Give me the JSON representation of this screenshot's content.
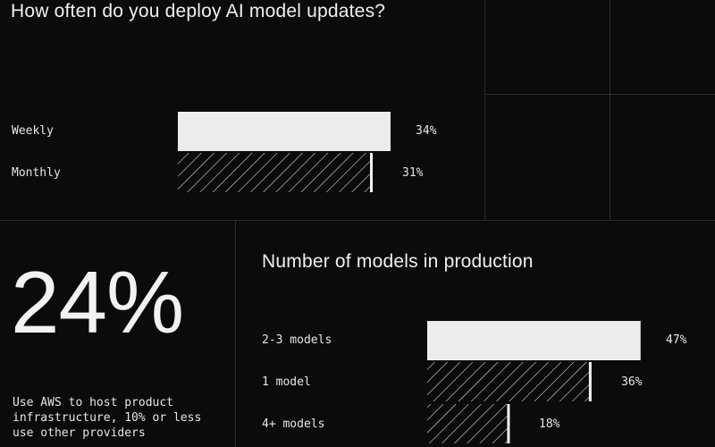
{
  "chart_data": [
    {
      "type": "bar",
      "orientation": "horizontal",
      "title": "How often do you deploy AI model updates?",
      "categories": [
        "Weekly",
        "Monthly"
      ],
      "values": [
        34,
        31
      ],
      "value_labels": [
        "34%",
        "31%"
      ],
      "styles": [
        "solid",
        "hatched"
      ]
    },
    {
      "type": "bar",
      "orientation": "horizontal",
      "title": "Number of models in production",
      "categories": [
        "2-3 models",
        "1 model",
        "4+ models"
      ],
      "values": [
        47,
        36,
        18
      ],
      "value_labels": [
        "47%",
        "36%",
        "18%"
      ],
      "styles": [
        "solid",
        "hatched",
        "hatched"
      ]
    }
  ],
  "stat": {
    "value": "24%",
    "description": "Use AWS to host product infrastructure, 10% or less use other providers"
  },
  "colors": {
    "background": "#0b0b0b",
    "bar_fill": "#ececec",
    "hatch": "#d8d8d8",
    "grid_line": "#2b2b2b"
  }
}
